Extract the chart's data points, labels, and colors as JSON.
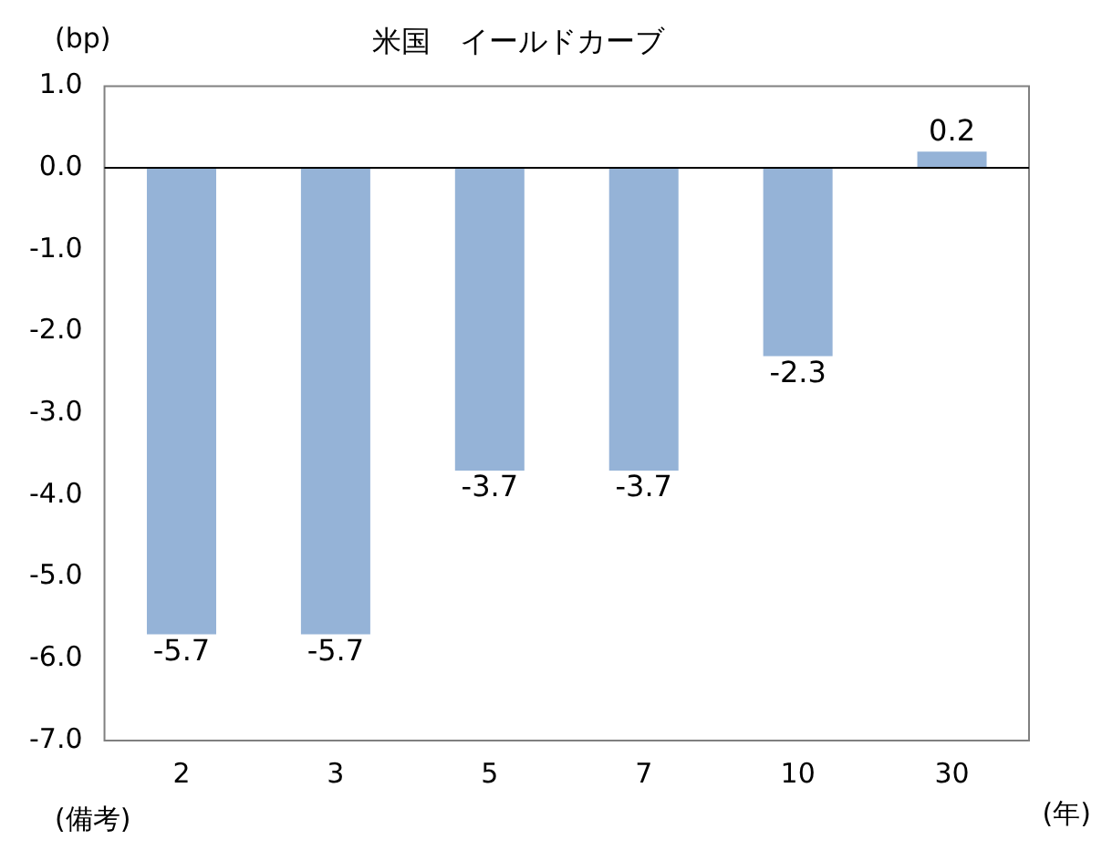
{
  "chart_data": {
    "type": "bar",
    "title": "米国　イールドカーブ",
    "ylabel": "(bp)",
    "xlabel": "(年)",
    "categories": [
      "2",
      "3",
      "5",
      "7",
      "10",
      "30"
    ],
    "values": [
      -5.7,
      -5.7,
      -3.7,
      -3.7,
      -2.3,
      0.2
    ],
    "color": "#95b3d7",
    "ylim": [
      -7,
      1
    ],
    "yticks": [
      {
        "value": 1,
        "label": "1.0"
      },
      {
        "value": 0,
        "label": "0.0"
      },
      {
        "value": -1,
        "label": "-1.0"
      },
      {
        "value": -2,
        "label": "-2.0"
      },
      {
        "value": -3,
        "label": "-3.0"
      },
      {
        "value": -4,
        "label": "-4.0"
      },
      {
        "value": -5,
        "label": "-5.0"
      },
      {
        "value": -6,
        "label": "-6.0"
      },
      {
        "value": -7,
        "label": "-7.0"
      }
    ],
    "ref_lines": [
      {
        "axis": "y",
        "value": 0,
        "color": "#000000"
      }
    ],
    "data_labels": true,
    "grid": false,
    "legend": false,
    "annotations": [
      "(備考)"
    ]
  }
}
